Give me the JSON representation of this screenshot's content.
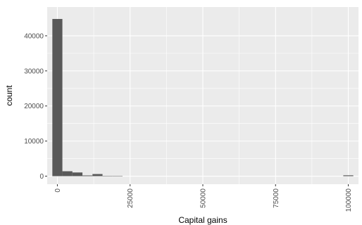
{
  "chart_data": {
    "type": "bar",
    "title": "",
    "xlabel": "Capital gains",
    "ylabel": "count",
    "xlim": [
      -3500,
      103500
    ],
    "ylim": [
      -2300,
      48200
    ],
    "grid": true,
    "x_ticks": [
      {
        "value": 0,
        "label": "0"
      },
      {
        "value": 25000,
        "label": "25000"
      },
      {
        "value": 50000,
        "label": "50000"
      },
      {
        "value": 75000,
        "label": "75000"
      },
      {
        "value": 100000,
        "label": "100000"
      }
    ],
    "y_ticks": [
      {
        "value": 0,
        "label": "0"
      },
      {
        "value": 10000,
        "label": "10000"
      },
      {
        "value": 20000,
        "label": "20000"
      },
      {
        "value": 30000,
        "label": "30000"
      },
      {
        "value": 40000,
        "label": "40000"
      }
    ],
    "bin_width": 3448,
    "bins": [
      {
        "x": 0,
        "count": 44800
      },
      {
        "x": 3448,
        "count": 1400
      },
      {
        "x": 6897,
        "count": 1050
      },
      {
        "x": 10345,
        "count": 200
      },
      {
        "x": 13793,
        "count": 600
      },
      {
        "x": 17241,
        "count": 20
      },
      {
        "x": 20690,
        "count": 10
      },
      {
        "x": 100000,
        "count": 240
      }
    ],
    "colors": {
      "panel_background": "#ebebeb",
      "grid_major": "#ffffff",
      "bar_fill": "#595959"
    }
  }
}
